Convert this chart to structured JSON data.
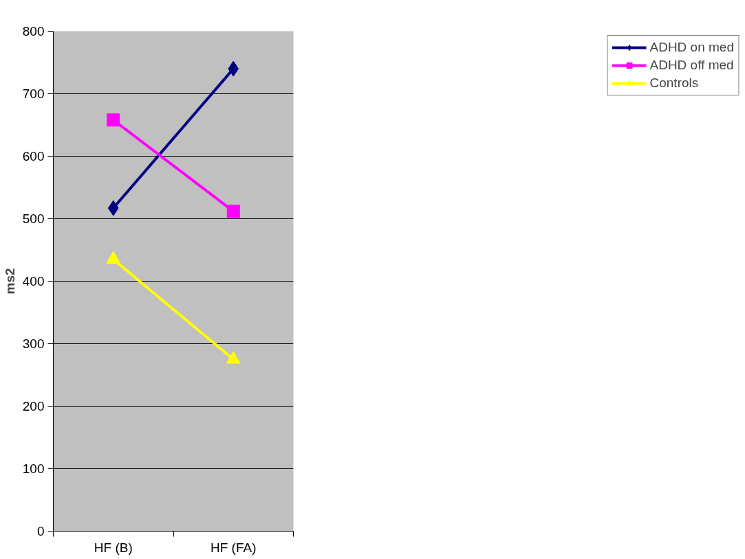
{
  "chart_data": {
    "type": "line",
    "ylabel": "ms2",
    "categories": [
      "HF (B)",
      "HF (FA)"
    ],
    "series": [
      {
        "name": "ADHD on med",
        "color": "#000080",
        "values": [
          517,
          740
        ],
        "marker": "diamond"
      },
      {
        "name": "ADHD off med",
        "color": "#ff00ff",
        "values": [
          658,
          512
        ],
        "marker": "square"
      },
      {
        "name": "Controls",
        "color": "#ffff00",
        "values": [
          435,
          275
        ],
        "marker": "triangle"
      }
    ],
    "ylim": [
      0,
      800
    ],
    "yticks": [
      0,
      100,
      200,
      300,
      400,
      500,
      600,
      700,
      800
    ],
    "grid": "y",
    "legend": "right",
    "line_style": "solid"
  }
}
